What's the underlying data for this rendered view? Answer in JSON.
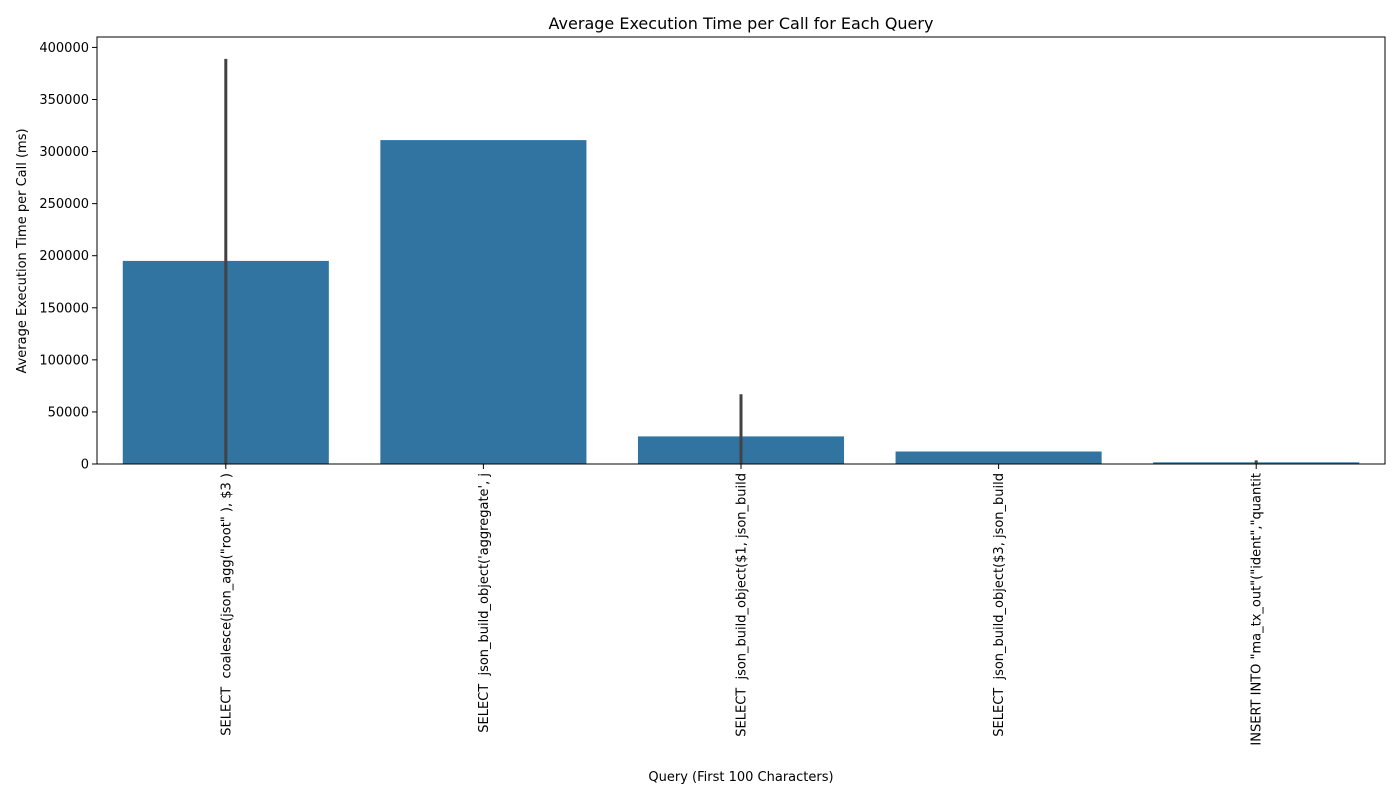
{
  "chart_data": {
    "type": "bar",
    "title": "Average Execution Time per Call for Each Query",
    "xlabel": "Query (First 100 Characters)",
    "ylabel": "Average Execution Time per Call (ms)",
    "categories": [
      "SELECT  coalesce(json_agg(\"root\" ), $3 )",
      "SELECT  json_build_object('aggregate', j",
      "SELECT  json_build_object($1, json_build",
      "SELECT  json_build_object($3, json_build",
      "INSERT INTO \"ma_tx_out\"(\"ident\",\"quantit"
    ],
    "values": [
      195000,
      311000,
      26500,
      12000,
      1600
    ],
    "error_bars": [
      {
        "low": 0,
        "high": 389000
      },
      null,
      {
        "low": 0,
        "high": 67000
      },
      null,
      {
        "low": 0,
        "high": 3500
      }
    ],
    "ylim": [
      0,
      410000
    ],
    "yticks": [
      0,
      50000,
      100000,
      150000,
      200000,
      250000,
      300000,
      350000,
      400000
    ],
    "ytick_labels": [
      "0",
      "50000",
      "100000",
      "150000",
      "200000",
      "250000",
      "300000",
      "350000",
      "400000"
    ],
    "grid": false,
    "bar_color": "#3274a1",
    "error_color": "#424242"
  }
}
